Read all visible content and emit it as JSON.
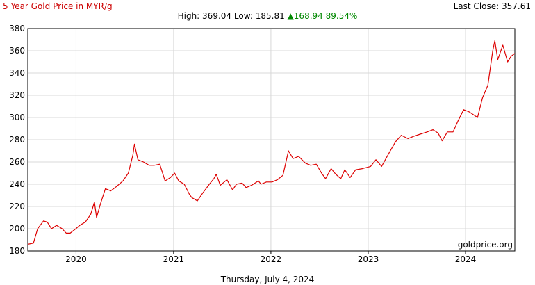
{
  "header": {
    "title": "5 Year Gold Price in MYR/g",
    "last_close_label": "Last Close:",
    "last_close_value": "357.61",
    "high_label": "High:",
    "high_value": "369.04",
    "low_label": "Low:",
    "low_value": "185.81",
    "change_value": "168.94",
    "change_percent": "89.54%",
    "change_arrow": "up-triangle-icon"
  },
  "footer": {
    "date": "Thursday, July 4, 2024",
    "watermark": "goldprice.org"
  },
  "colors": {
    "line": "#dd0000",
    "title": "#cc0000",
    "up": "#008800",
    "grid": "#d8d8d8",
    "axis": "#000000"
  },
  "chart_data": {
    "type": "line",
    "title": "5 Year Gold Price in MYR/g",
    "xlabel": "",
    "ylabel": "",
    "ylim": [
      180,
      380
    ],
    "xlim": [
      "2019-07-04",
      "2024-07-04"
    ],
    "grid": true,
    "y_ticks": [
      "180",
      "200",
      "220",
      "240",
      "260",
      "280",
      "300",
      "320",
      "340",
      "360",
      "380"
    ],
    "x_ticks": [
      "2020",
      "2021",
      "2022",
      "2023",
      "2024"
    ],
    "x_tick_dates": [
      "2020-01-01",
      "2021-01-01",
      "2022-01-01",
      "2023-01-01",
      "2024-01-01"
    ],
    "series": [
      {
        "values": [
          [
            "2019-07-04",
            186
          ],
          [
            "2019-07-25",
            187
          ],
          [
            "2019-08-10",
            200
          ],
          [
            "2019-09-01",
            207
          ],
          [
            "2019-09-15",
            206
          ],
          [
            "2019-10-01",
            200
          ],
          [
            "2019-10-20",
            203
          ],
          [
            "2019-11-10",
            200
          ],
          [
            "2019-11-25",
            196
          ],
          [
            "2019-12-10",
            196
          ],
          [
            "2019-12-31",
            200
          ],
          [
            "2020-01-15",
            203
          ],
          [
            "2020-02-05",
            206
          ],
          [
            "2020-02-25",
            213
          ],
          [
            "2020-03-10",
            224
          ],
          [
            "2020-03-18",
            210
          ],
          [
            "2020-04-01",
            222
          ],
          [
            "2020-04-20",
            236
          ],
          [
            "2020-05-10",
            234
          ],
          [
            "2020-06-01",
            238
          ],
          [
            "2020-06-25",
            243
          ],
          [
            "2020-07-15",
            250
          ],
          [
            "2020-08-01",
            266
          ],
          [
            "2020-08-07",
            276
          ],
          [
            "2020-08-20",
            262
          ],
          [
            "2020-09-10",
            260
          ],
          [
            "2020-10-01",
            257
          ],
          [
            "2020-10-20",
            257
          ],
          [
            "2020-11-10",
            258
          ],
          [
            "2020-11-30",
            243
          ],
          [
            "2020-12-20",
            246
          ],
          [
            "2021-01-05",
            250
          ],
          [
            "2021-01-20",
            243
          ],
          [
            "2021-02-10",
            240
          ],
          [
            "2021-03-01",
            231
          ],
          [
            "2021-03-10",
            228
          ],
          [
            "2021-03-31",
            225
          ],
          [
            "2021-04-20",
            232
          ],
          [
            "2021-05-15",
            240
          ],
          [
            "2021-06-01",
            245
          ],
          [
            "2021-06-10",
            249
          ],
          [
            "2021-06-25",
            239
          ],
          [
            "2021-07-20",
            244
          ],
          [
            "2021-08-10",
            235
          ],
          [
            "2021-08-25",
            240
          ],
          [
            "2021-09-15",
            241
          ],
          [
            "2021-09-30",
            237
          ],
          [
            "2021-10-20",
            239
          ],
          [
            "2021-11-15",
            243
          ],
          [
            "2021-11-25",
            240
          ],
          [
            "2021-12-15",
            242
          ],
          [
            "2022-01-05",
            242
          ],
          [
            "2022-01-25",
            244
          ],
          [
            "2022-02-15",
            248
          ],
          [
            "2022-03-08",
            270
          ],
          [
            "2022-03-25",
            263
          ],
          [
            "2022-04-15",
            265
          ],
          [
            "2022-05-10",
            259
          ],
          [
            "2022-05-30",
            257
          ],
          [
            "2022-06-20",
            258
          ],
          [
            "2022-07-10",
            250
          ],
          [
            "2022-07-25",
            245
          ],
          [
            "2022-08-15",
            254
          ],
          [
            "2022-09-01",
            249
          ],
          [
            "2022-09-20",
            245
          ],
          [
            "2022-10-05",
            253
          ],
          [
            "2022-10-25",
            246
          ],
          [
            "2022-11-15",
            253
          ],
          [
            "2022-12-10",
            254
          ],
          [
            "2023-01-10",
            256
          ],
          [
            "2023-01-30",
            262
          ],
          [
            "2023-02-20",
            256
          ],
          [
            "2023-03-20",
            268
          ],
          [
            "2023-04-13",
            278
          ],
          [
            "2023-05-05",
            284
          ],
          [
            "2023-05-30",
            281
          ],
          [
            "2023-06-20",
            283
          ],
          [
            "2023-07-15",
            285
          ],
          [
            "2023-08-10",
            287
          ],
          [
            "2023-09-01",
            289
          ],
          [
            "2023-09-20",
            286
          ],
          [
            "2023-10-05",
            279
          ],
          [
            "2023-10-25",
            287
          ],
          [
            "2023-11-15",
            287
          ],
          [
            "2023-12-04",
            297
          ],
          [
            "2023-12-25",
            307
          ],
          [
            "2024-01-15",
            305
          ],
          [
            "2024-02-15",
            300
          ],
          [
            "2024-03-05",
            318
          ],
          [
            "2024-03-25",
            329
          ],
          [
            "2024-04-12",
            360
          ],
          [
            "2024-04-20",
            369
          ],
          [
            "2024-05-01",
            352
          ],
          [
            "2024-05-20",
            365
          ],
          [
            "2024-06-07",
            350
          ],
          [
            "2024-06-20",
            355
          ],
          [
            "2024-07-04",
            357.61
          ]
        ]
      }
    ]
  }
}
